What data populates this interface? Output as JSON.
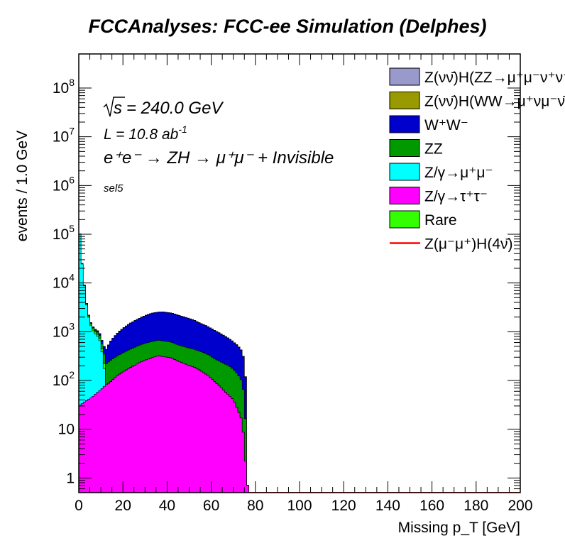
{
  "chart_data": {
    "type": "area",
    "title": "FCCAnalyses: FCC-ee Simulation (Delphes)",
    "xlabel": "Missing p_T [GeV]",
    "ylabel": "events / 1.0 GeV",
    "x_range": [
      0,
      200
    ],
    "y_range": [
      0.5,
      500000000
    ],
    "y_scale": "log",
    "x_ticks": [
      "0",
      "20",
      "40",
      "60",
      "80",
      "100",
      "120",
      "140",
      "160",
      "180",
      "200"
    ],
    "y_ticks": [
      {
        "value": 1,
        "label": "1"
      },
      {
        "value": 10,
        "label": "10"
      },
      {
        "value": 100,
        "label": "10^2"
      },
      {
        "value": 1000,
        "label": "10^3"
      },
      {
        "value": 10000,
        "label": "10^4"
      },
      {
        "value": 100000,
        "label": "10^5"
      },
      {
        "value": 1000000,
        "label": "10^6"
      },
      {
        "value": 10000000,
        "label": "10^7"
      },
      {
        "value": 100000000,
        "label": "10^8"
      }
    ],
    "annotations": {
      "sqrt_s": "= 240.0 GeV",
      "lumi_prefix": "L = 10.8 ab",
      "lumi_exp": "-1",
      "process": "e⁺e⁻ → ZH → μ⁺μ⁻ + Invisible",
      "selection": "sel5"
    },
    "legend_position": "top-right",
    "stack_order": [
      "Z/γ→τ⁺τ⁻",
      "Z/γ→μ⁺μ⁻",
      "Rare",
      "ZZ",
      "W⁺W⁻",
      "Z(νν̄)H(WW→μ⁺νμ⁻ν̄)",
      "Z(νν̄)H(ZZ→μ⁺μ⁻ν⁺ν⁻)"
    ],
    "series": [
      {
        "name": "Z(νν̄)H(ZZ→μ⁺μ⁻ν⁺ν⁻)",
        "color": "#9999cc",
        "style": "fill",
        "points": [
          [
            28,
            0.5
          ],
          [
            30,
            0.55
          ],
          [
            32,
            0.62
          ],
          [
            34,
            0.68
          ],
          [
            36,
            0.72
          ],
          [
            38,
            0.7
          ],
          [
            40,
            0.65
          ],
          [
            42,
            0.58
          ],
          [
            44,
            0.5
          ]
        ]
      },
      {
        "name": "Z(νν̄)H(WW→μ⁺νμ⁻ν̄)",
        "color": "#999900",
        "style": "fill",
        "points": [
          [
            10,
            2
          ],
          [
            20,
            6
          ],
          [
            30,
            10
          ],
          [
            40,
            12
          ],
          [
            50,
            10
          ],
          [
            60,
            8
          ],
          [
            70,
            5
          ],
          [
            76,
            3
          ]
        ]
      },
      {
        "name": "W⁺W⁻",
        "color": "#0000cc",
        "style": "fill",
        "points": [
          [
            2,
            15
          ],
          [
            4,
            25
          ],
          [
            6,
            40
          ],
          [
            8,
            60
          ],
          [
            10,
            90
          ],
          [
            12,
            180
          ],
          [
            14,
            350
          ],
          [
            16,
            500
          ],
          [
            18,
            650
          ],
          [
            20,
            800
          ],
          [
            22,
            950
          ],
          [
            24,
            1100
          ],
          [
            26,
            1250
          ],
          [
            28,
            1400
          ],
          [
            30,
            1550
          ],
          [
            32,
            1700
          ],
          [
            34,
            1800
          ],
          [
            36,
            1850
          ],
          [
            38,
            1900
          ],
          [
            40,
            1850
          ],
          [
            42,
            1800
          ],
          [
            44,
            1700
          ],
          [
            46,
            1600
          ],
          [
            48,
            1500
          ],
          [
            50,
            1400
          ],
          [
            52,
            1300
          ],
          [
            54,
            1150
          ],
          [
            56,
            1050
          ],
          [
            58,
            950
          ],
          [
            60,
            850
          ],
          [
            62,
            760
          ],
          [
            64,
            680
          ],
          [
            66,
            600
          ],
          [
            68,
            520
          ],
          [
            70,
            450
          ],
          [
            72,
            380
          ],
          [
            74,
            300
          ],
          [
            75,
            200
          ],
          [
            76,
            50
          ]
        ]
      },
      {
        "name": "ZZ",
        "color": "#009900",
        "style": "fill",
        "points": [
          [
            0,
            50
          ],
          [
            2,
            60
          ],
          [
            4,
            70
          ],
          [
            6,
            80
          ],
          [
            8,
            90
          ],
          [
            10,
            110
          ],
          [
            12,
            130
          ],
          [
            14,
            160
          ],
          [
            16,
            180
          ],
          [
            18,
            200
          ],
          [
            20,
            220
          ],
          [
            22,
            240
          ],
          [
            24,
            260
          ],
          [
            26,
            280
          ],
          [
            28,
            300
          ],
          [
            30,
            320
          ],
          [
            32,
            330
          ],
          [
            34,
            340
          ],
          [
            36,
            350
          ],
          [
            38,
            340
          ],
          [
            40,
            330
          ],
          [
            42,
            320
          ],
          [
            44,
            300
          ],
          [
            46,
            280
          ],
          [
            48,
            270
          ],
          [
            50,
            260
          ],
          [
            52,
            250
          ],
          [
            54,
            240
          ],
          [
            56,
            230
          ],
          [
            58,
            220
          ],
          [
            60,
            200
          ],
          [
            62,
            180
          ],
          [
            64,
            170
          ],
          [
            66,
            160
          ],
          [
            68,
            150
          ],
          [
            70,
            130
          ],
          [
            72,
            110
          ],
          [
            74,
            80
          ],
          [
            75,
            40
          ],
          [
            76,
            5
          ]
        ]
      },
      {
        "name": "Z/γ→μ⁺μ⁻",
        "color": "#00ffff",
        "style": "fill",
        "points": [
          [
            0,
            250000
          ],
          [
            1,
            40000
          ],
          [
            2,
            15000
          ],
          [
            3,
            5000
          ],
          [
            4,
            2500
          ],
          [
            5,
            1500
          ],
          [
            6,
            1100
          ],
          [
            7,
            900
          ],
          [
            8,
            800
          ],
          [
            9,
            700
          ],
          [
            10,
            500
          ],
          [
            11,
            200
          ],
          [
            12,
            50
          ]
        ]
      },
      {
        "name": "Z/γ→τ⁺τ⁻",
        "color": "#ff00ff",
        "style": "fill",
        "points": [
          [
            0,
            30
          ],
          [
            2,
            35
          ],
          [
            4,
            40
          ],
          [
            6,
            45
          ],
          [
            8,
            55
          ],
          [
            10,
            65
          ],
          [
            12,
            80
          ],
          [
            14,
            90
          ],
          [
            16,
            110
          ],
          [
            18,
            130
          ],
          [
            20,
            150
          ],
          [
            22,
            170
          ],
          [
            24,
            190
          ],
          [
            26,
            210
          ],
          [
            28,
            240
          ],
          [
            30,
            260
          ],
          [
            32,
            280
          ],
          [
            34,
            300
          ],
          [
            36,
            320
          ],
          [
            38,
            310
          ],
          [
            40,
            300
          ],
          [
            42,
            290
          ],
          [
            44,
            260
          ],
          [
            46,
            240
          ],
          [
            48,
            220
          ],
          [
            50,
            200
          ],
          [
            52,
            190
          ],
          [
            54,
            170
          ],
          [
            56,
            150
          ],
          [
            58,
            130
          ],
          [
            60,
            110
          ],
          [
            62,
            90
          ],
          [
            64,
            75
          ],
          [
            66,
            60
          ],
          [
            68,
            50
          ],
          [
            70,
            40
          ],
          [
            72,
            25
          ],
          [
            74,
            15
          ],
          [
            75,
            5
          ],
          [
            76,
            1
          ],
          [
            77,
            0.5
          ]
        ]
      },
      {
        "name": "Rare",
        "color": "#33ff00",
        "style": "fill",
        "points": [
          [
            0,
            2000
          ],
          [
            1,
            800
          ],
          [
            2,
            400
          ],
          [
            3,
            200
          ],
          [
            4,
            120
          ],
          [
            5,
            100
          ],
          [
            6,
            90
          ],
          [
            8,
            80
          ],
          [
            10,
            70
          ],
          [
            12,
            40
          ]
        ]
      },
      {
        "name": "Z(μ⁻μ⁺)H(4ν̄)",
        "color": "#ff0000",
        "style": "line",
        "points": [
          [
            77,
            0.5
          ],
          [
            200,
            0.5
          ]
        ]
      }
    ]
  }
}
